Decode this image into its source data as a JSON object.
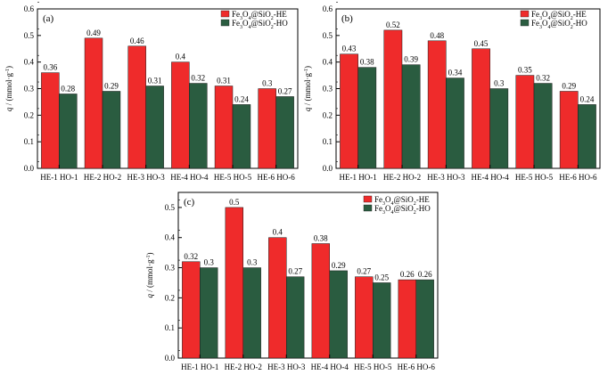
{
  "chart_data": [
    {
      "type": "bar",
      "panel": "(a)",
      "categories": [
        "HE-1 HO-1",
        "HE-2 HO-2",
        "HE-3 HO-3",
        "HE-4 HO-4",
        "HE-5 HO-5",
        "HE-6 HO-6"
      ],
      "series": [
        {
          "name": "Fe3O4@SiO2-HE",
          "values": [
            0.36,
            0.49,
            0.46,
            0.4,
            0.31,
            0.3
          ]
        },
        {
          "name": "Fe3O4@SiO2-HO",
          "values": [
            0.28,
            0.29,
            0.31,
            0.32,
            0.24,
            0.27
          ]
        }
      ],
      "ylabel": "q / (mmol·g⁻¹)",
      "ylim": [
        0,
        0.6
      ],
      "yticks": [
        "0.0",
        "0.1",
        "0.2",
        "0.3",
        "0.4",
        "0.5",
        "0.6"
      ],
      "value_labels": [
        [
          "0.36",
          "0.49",
          "0.46",
          "0.4",
          "0.31",
          "0.3"
        ],
        [
          "0.28",
          "0.29",
          "0.31",
          "0.32",
          "0.24",
          "0.27"
        ]
      ],
      "legend": "top-right",
      "grid": false
    },
    {
      "type": "bar",
      "panel": "(b)",
      "categories": [
        "HE-1 HO-1",
        "HE-2 HO-2",
        "HE-3 HO-3",
        "HE-4 HO-4",
        "HE-5 HO-5",
        "HE-6 HO-6"
      ],
      "series": [
        {
          "name": "Fe3O4@SiO2-HE",
          "values": [
            0.43,
            0.52,
            0.48,
            0.45,
            0.35,
            0.29
          ]
        },
        {
          "name": "Fe3O4@SiO2-HO",
          "values": [
            0.38,
            0.39,
            0.34,
            0.3,
            0.32,
            0.24
          ]
        }
      ],
      "ylabel": "q / (mmol·g⁻¹)",
      "ylim": [
        0,
        0.6
      ],
      "yticks": [
        "0.0",
        "0.1",
        "0.2",
        "0.3",
        "0.4",
        "0.5",
        "0.6"
      ],
      "value_labels": [
        [
          "0.43",
          "0.52",
          "0.48",
          "0.45",
          "0.35",
          "0.29"
        ],
        [
          "0.38",
          "0.39",
          "0.34",
          "0.3",
          "0.32",
          "0.24"
        ]
      ],
      "legend": "top-right",
      "grid": false
    },
    {
      "type": "bar",
      "panel": "(c)",
      "categories": [
        "HE-1 HO-1",
        "HE-2 HO-2",
        "HE-3 HO-3",
        "HE-4 HO-4",
        "HE-5 HO-5",
        "HE-6 HO-6"
      ],
      "series": [
        {
          "name": "Fe3O4@SiO2-HE",
          "values": [
            0.32,
            0.5,
            0.4,
            0.38,
            0.27,
            0.26
          ]
        },
        {
          "name": "Fe3O4@SiO2-HO",
          "values": [
            0.3,
            0.3,
            0.27,
            0.29,
            0.25,
            0.26
          ]
        }
      ],
      "ylabel": "q / (mmol·g⁻¹)",
      "ylim": [
        0,
        0.55
      ],
      "yticks": [
        "0.0",
        "0.1",
        "0.2",
        "0.3",
        "0.4",
        "0.5"
      ],
      "value_labels": [
        [
          "0.32",
          "0.5",
          "0.4",
          "0.38",
          "0.27",
          "0.26"
        ],
        [
          "0.3",
          "0.3",
          "0.27",
          "0.29",
          "0.25",
          "0.26"
        ]
      ],
      "legend": "top-left",
      "grid": false
    }
  ],
  "colors": {
    "he": "#ef2b2b",
    "ho": "#2a5c40"
  },
  "legend_text": {
    "he": {
      "pre": "Fe",
      "s1": "3",
      "mid": "O",
      "s2": "4",
      "mid2": "@SiO",
      "s3": "2",
      "post": "-HE"
    },
    "ho": {
      "pre": "Fe",
      "s1": "3",
      "mid": "O",
      "s2": "4",
      "mid2": "@SiO",
      "s3": "2",
      "post": "-HO"
    }
  },
  "ylabel_text": {
    "q": "q",
    "rest": " / (mmol·g",
    "sup": "-1",
    "close": ")"
  }
}
